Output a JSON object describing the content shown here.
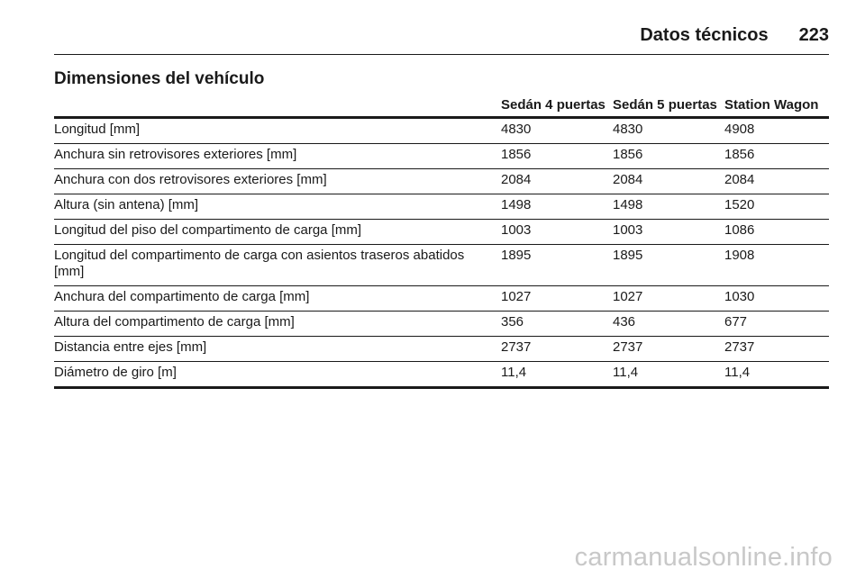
{
  "header": {
    "running_title": "Datos técnicos",
    "page_number": "223"
  },
  "section": {
    "title": "Dimensiones del vehículo"
  },
  "table": {
    "columns": [
      "",
      "Sedán 4 puertas",
      "Sedán 5 puertas",
      "Station Wagon"
    ],
    "rows": [
      {
        "label": "Longitud [mm]",
        "values": [
          "4830",
          "4830",
          "4908"
        ]
      },
      {
        "label": "Anchura sin retrovisores exteriores [mm]",
        "values": [
          "1856",
          "1856",
          "1856"
        ]
      },
      {
        "label": "Anchura con dos retrovisores exteriores [mm]",
        "values": [
          "2084",
          "2084",
          "2084"
        ]
      },
      {
        "label": "Altura (sin antena) [mm]",
        "values": [
          "1498",
          "1498",
          "1520"
        ]
      },
      {
        "label": "Longitud del piso del compartimento de carga [mm]",
        "values": [
          "1003",
          "1003",
          "1086"
        ]
      },
      {
        "label": "Longitud del compartimento de carga con asientos traseros abatidos [mm]",
        "values": [
          "1895",
          "1895",
          "1908"
        ]
      },
      {
        "label": "Anchura del compartimento de carga [mm]",
        "values": [
          "1027",
          "1027",
          "1030"
        ]
      },
      {
        "label": "Altura del compartimento de carga [mm]",
        "values": [
          "356",
          "436",
          "677"
        ]
      },
      {
        "label": "Distancia entre ejes [mm]",
        "values": [
          "2737",
          "2737",
          "2737"
        ]
      },
      {
        "label": "Diámetro de giro [m]",
        "values": [
          "11,4",
          "11,4",
          "11,4"
        ]
      }
    ]
  },
  "watermark": "carmanualsonline.info"
}
